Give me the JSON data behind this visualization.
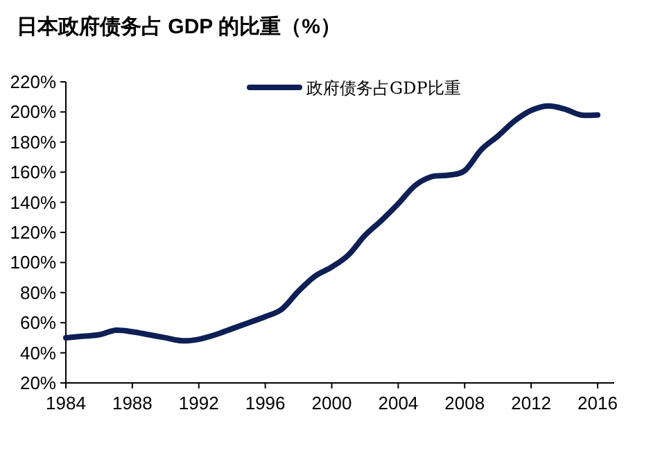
{
  "chart_data": {
    "type": "line",
    "title": "日本政府债务占 GDP 的比重（%）",
    "x": [
      1984,
      1985,
      1986,
      1987,
      1988,
      1989,
      1990,
      1991,
      1992,
      1993,
      1994,
      1995,
      1996,
      1997,
      1998,
      1999,
      2000,
      2001,
      2002,
      2003,
      2004,
      2005,
      2006,
      2007,
      2008,
      2009,
      2010,
      2011,
      2012,
      2013,
      2014,
      2015,
      2016
    ],
    "series": [
      {
        "name": "政府债务占GDP比重",
        "color": "#0d1f55",
        "values": [
          50,
          51,
          52,
          55,
          54,
          52,
          50,
          48,
          49,
          52,
          56,
          60,
          64,
          69,
          81,
          91,
          97,
          105,
          118,
          128,
          139,
          151,
          157,
          158,
          161,
          175,
          184,
          194,
          201,
          204,
          202,
          198,
          198
        ]
      }
    ],
    "xlim": [
      1984,
      2017
    ],
    "ylim": [
      20,
      220
    ],
    "xticks": [
      1984,
      1988,
      1992,
      1996,
      2000,
      2004,
      2008,
      2012,
      2016
    ],
    "yticks": [
      {
        "value": 20,
        "label": "20%"
      },
      {
        "value": 40,
        "label": "40%"
      },
      {
        "value": 60,
        "label": "60%"
      },
      {
        "value": 80,
        "label": "80%"
      },
      {
        "value": 100,
        "label": "100%"
      },
      {
        "value": 120,
        "label": "120%"
      },
      {
        "value": 140,
        "label": "140%"
      },
      {
        "value": 160,
        "label": "160%"
      },
      {
        "value": 180,
        "label": "180%"
      },
      {
        "value": 200,
        "label": "200%"
      },
      {
        "value": 220,
        "label": "220%"
      }
    ],
    "legend": "top right"
  }
}
